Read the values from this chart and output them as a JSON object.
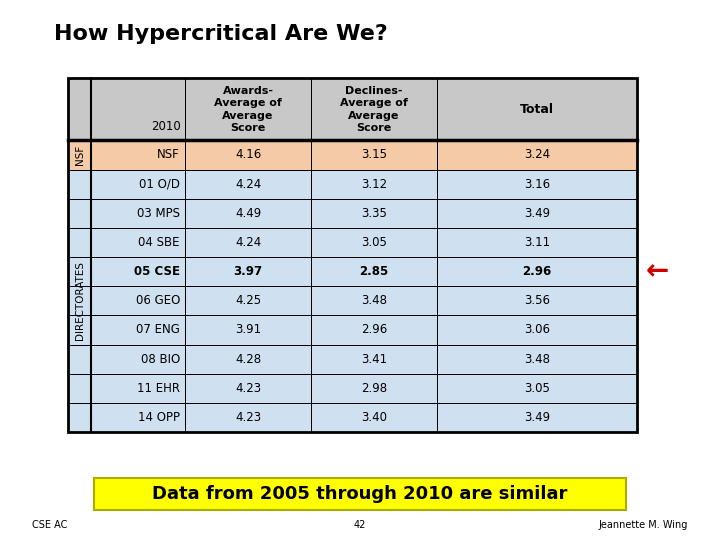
{
  "title": "How Hypercritical Are We?",
  "col_headers_line1": [
    "",
    "Awards-",
    "Declines-",
    ""
  ],
  "col_headers_line2": [
    "",
    "Average of",
    "Average of",
    ""
  ],
  "col_headers_line3": [
    "2010",
    "Average",
    "Average",
    "Total"
  ],
  "col_headers_line4": [
    "",
    "Score",
    "Score",
    ""
  ],
  "rows": [
    {
      "label": "NSF",
      "awards": "4.16",
      "declines": "3.15",
      "total": "3.24",
      "highlight": "nsf",
      "bold": false
    },
    {
      "label": "01 O/D",
      "awards": "4.24",
      "declines": "3.12",
      "total": "3.16",
      "highlight": "blue",
      "bold": false
    },
    {
      "label": "03 MPS",
      "awards": "4.49",
      "declines": "3.35",
      "total": "3.49",
      "highlight": "blue",
      "bold": false
    },
    {
      "label": "04 SBE",
      "awards": "4.24",
      "declines": "3.05",
      "total": "3.11",
      "highlight": "blue",
      "bold": false
    },
    {
      "label": "05 CSE",
      "awards": "3.97",
      "declines": "2.85",
      "total": "2.96",
      "highlight": "blue",
      "bold": true
    },
    {
      "label": "06 GEO",
      "awards": "4.25",
      "declines": "3.48",
      "total": "3.56",
      "highlight": "blue",
      "bold": false
    },
    {
      "label": "07 ENG",
      "awards": "3.91",
      "declines": "2.96",
      "total": "3.06",
      "highlight": "blue",
      "bold": false
    },
    {
      "label": "08 BIO",
      "awards": "4.28",
      "declines": "3.41",
      "total": "3.48",
      "highlight": "blue",
      "bold": false
    },
    {
      "label": "11 EHR",
      "awards": "4.23",
      "declines": "2.98",
      "total": "3.05",
      "highlight": "blue",
      "bold": false
    },
    {
      "label": "14 OPP",
      "awards": "4.23",
      "declines": "3.40",
      "total": "3.49",
      "highlight": "blue",
      "bold": false
    }
  ],
  "footer_text": "Data from 2005 through 2010 are similar",
  "footer_bg": "#ffff00",
  "bottom_left": "CSE AC",
  "bottom_center": "42",
  "bottom_right": "Jeannette M. Wing",
  "color_header": "#c8c8c8",
  "color_nsf_row": "#f5cba7",
  "color_blue_row": "#cfe0f0",
  "arrow_color": "#cc0000"
}
